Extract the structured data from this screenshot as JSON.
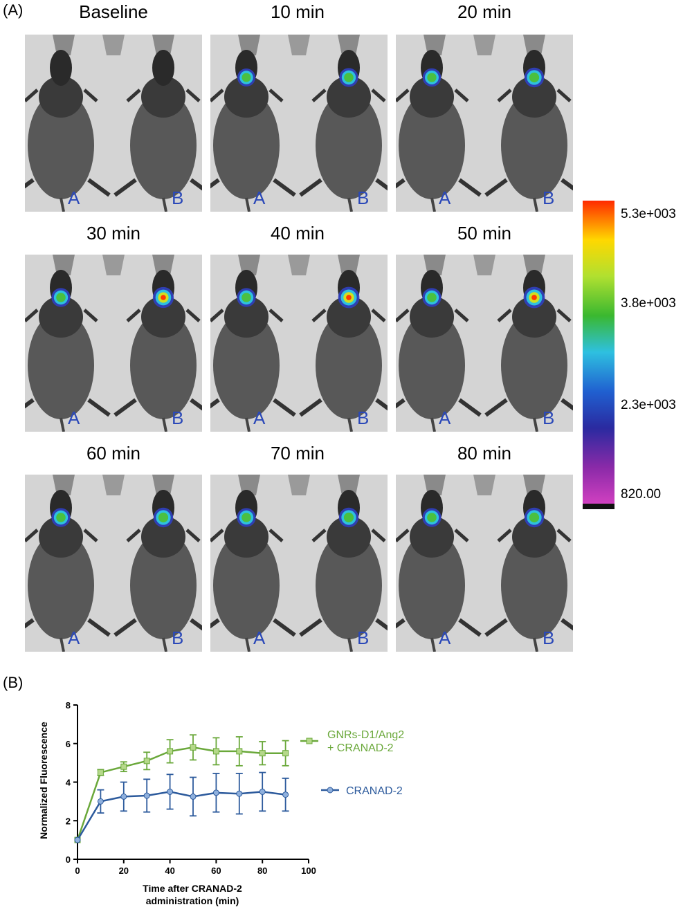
{
  "panel_a_label": "(A)",
  "panel_b_label": "(B)",
  "timepoints": [
    "Baseline",
    "10 min",
    "20 min",
    "30 min",
    "40 min",
    "50 min",
    "60 min",
    "70 min",
    "80 min"
  ],
  "mouse_labels": [
    "A",
    "B"
  ],
  "colorbar": {
    "labels": [
      "5.3e+003",
      "3.8e+003",
      "2.3e+003",
      "820.00"
    ],
    "colors": [
      "#ff2a00",
      "#ffd800",
      "#b0e030",
      "#3ab830",
      "#2ec0e0",
      "#2060d0",
      "#2a2aa0",
      "#8a2aa8",
      "#d040c0"
    ]
  },
  "colors": {
    "green_series": "#6aa83a",
    "blue_series": "#2c5a9c",
    "mouse_letter": "#2a48b8"
  },
  "chart_data": {
    "type": "line",
    "xlabel": "Time after CRANAD-2\nadministration (min)",
    "xlabel_lines": [
      "Time after CRANAD-2",
      "administration (min)"
    ],
    "ylabel": "Normalized Fluorescence",
    "xlim": [
      0,
      100
    ],
    "ylim": [
      0,
      8
    ],
    "xticks": [
      0,
      20,
      40,
      60,
      80,
      100
    ],
    "yticks": [
      0,
      2,
      4,
      6,
      8
    ],
    "x": [
      0,
      10,
      20,
      30,
      40,
      50,
      60,
      70,
      80,
      90
    ],
    "series": [
      {
        "name": "GNRs-D1/Ang2 + CRANAD-2",
        "name_lines": [
          "GNRs-D1/Ang2",
          "+ CRANAD-2"
        ],
        "values": [
          1.0,
          4.5,
          4.8,
          5.1,
          5.6,
          5.8,
          5.6,
          5.6,
          5.5,
          5.5
        ],
        "error": [
          0.05,
          0.15,
          0.25,
          0.45,
          0.6,
          0.65,
          0.7,
          0.75,
          0.6,
          0.65
        ]
      },
      {
        "name": "CRANAD-2",
        "name_lines": [
          "CRANAD-2"
        ],
        "values": [
          1.0,
          3.0,
          3.25,
          3.3,
          3.5,
          3.25,
          3.45,
          3.4,
          3.5,
          3.35
        ],
        "error": [
          0.05,
          0.6,
          0.75,
          0.85,
          0.9,
          1.0,
          1.0,
          1.05,
          1.0,
          0.85
        ]
      }
    ]
  }
}
